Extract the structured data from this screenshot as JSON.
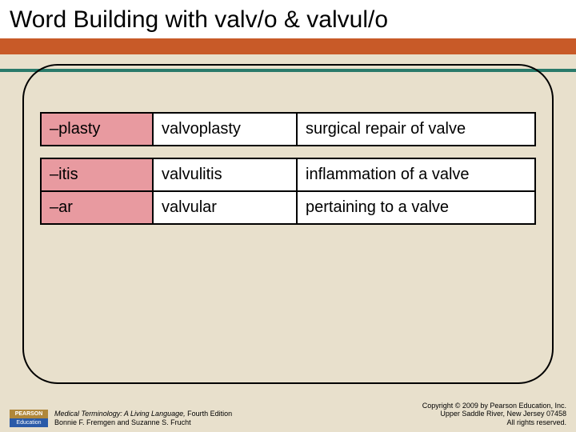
{
  "header": {
    "title": "Word Building with valv/o & valvul/o"
  },
  "table1": {
    "rows": [
      {
        "suffix": "–plasty",
        "term": "valvoplasty",
        "def": "surgical repair of valve"
      }
    ]
  },
  "table2": {
    "rows": [
      {
        "suffix": "–itis",
        "term": "valvulitis",
        "def": "inflammation of a valve"
      },
      {
        "suffix": "–ar",
        "term": "valvular",
        "def": "pertaining to a valve"
      }
    ]
  },
  "footer": {
    "logo_top": "PEARSON",
    "logo_bottom": "Education",
    "book_title": "Medical Terminology: A Living Language,",
    "book_edition": " Fourth Edition",
    "authors": "Bonnie F. Fremgen and Suzanne S. Frucht",
    "copyright_line1": "Copyright © 2009 by Pearson Education, Inc.",
    "copyright_line2": "Upper Saddle River, New Jersey 07458",
    "copyright_line3": "All rights reserved."
  },
  "styling": {
    "background_color": "#e8e0cc",
    "orange_band_color": "#c85a28",
    "teal_line_color": "#2a7a6a",
    "suffix_cell_bg": "#e89aa0",
    "cell_bg": "#ffffff",
    "border_color": "#000000",
    "header_font_size": 30,
    "cell_font_size": 20,
    "footer_font_size": 9,
    "col_widths": {
      "suffix": 140,
      "term": 180
    }
  }
}
